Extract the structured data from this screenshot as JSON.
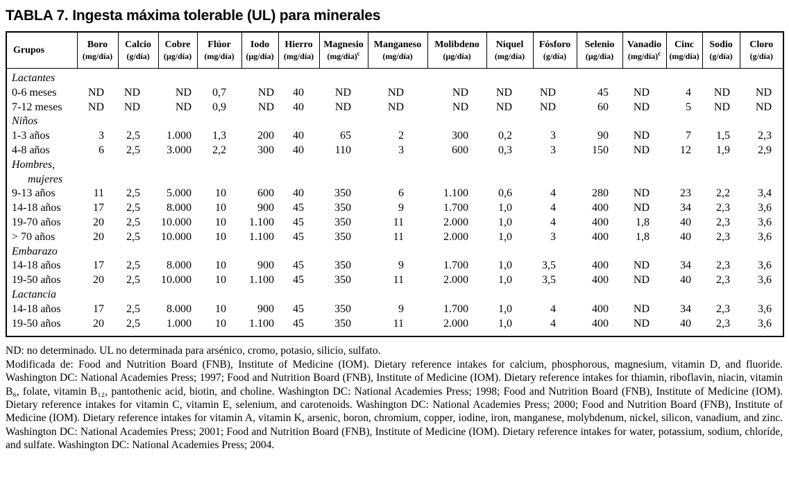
{
  "title": "TABLA 7. Ingesta máxima tolerable (UL) para minerales",
  "table": {
    "columns": [
      {
        "name": "Grupos",
        "unit": ""
      },
      {
        "name": "Boro",
        "unit": "(mg/día)"
      },
      {
        "name": "Calcio",
        "unit": "(g/día)"
      },
      {
        "name": "Cobre",
        "unit": "(µg/día)"
      },
      {
        "name": "Flúor",
        "unit": "(mg/día)"
      },
      {
        "name": "Iodo",
        "unit": "(µg/día)"
      },
      {
        "name": "Hierro",
        "unit": "(mg/día)"
      },
      {
        "name": "Magnesio",
        "unit": "(mg/día)",
        "unit_sup": "c"
      },
      {
        "name": "Manganeso",
        "unit": "(mg/día)"
      },
      {
        "name": "Molibdeno",
        "unit": "(µg/día)"
      },
      {
        "name": "Níquel",
        "unit": "(mg/día)"
      },
      {
        "name": "Fósforo",
        "unit": "(g/día)"
      },
      {
        "name": "Selenio",
        "unit": "(µg/día)"
      },
      {
        "name": "Vanadio",
        "unit": "(mg/día)",
        "unit_sup": "c"
      },
      {
        "name": "Cinc",
        "unit": "(mg/día)"
      },
      {
        "name": "Sodio",
        "unit": "(g/día)"
      },
      {
        "name": "Cloro",
        "unit": "(g/día)"
      }
    ],
    "rows": [
      {
        "type": "group",
        "label": "Lactantes"
      },
      {
        "type": "data",
        "label": "0-6 meses",
        "values": [
          "ND",
          "ND",
          "ND",
          "0,7",
          "ND",
          "40",
          "ND",
          "ND",
          "ND",
          "ND",
          "ND",
          "45",
          "ND",
          "4",
          "ND",
          "ND"
        ]
      },
      {
        "type": "data",
        "label": "7-12 meses",
        "values": [
          "ND",
          "ND",
          "ND",
          "0,9",
          "ND",
          "40",
          "ND",
          "ND",
          "ND",
          "ND",
          "ND",
          "60",
          "ND",
          "5",
          "ND",
          "ND"
        ]
      },
      {
        "type": "group",
        "label": "Niños"
      },
      {
        "type": "data",
        "label": "1-3 años",
        "values": [
          "3",
          "2,5",
          "1.000",
          "1,3",
          "200",
          "40",
          "65",
          "2",
          "300",
          "0,2",
          "3",
          "90",
          "ND",
          "7",
          "1,5",
          "2,3"
        ]
      },
      {
        "type": "data",
        "label": "4-8 años",
        "values": [
          "6",
          "2,5",
          "3.000",
          "2,2",
          "300",
          "40",
          "110",
          "3",
          "600",
          "0,3",
          "3",
          "150",
          "ND",
          "12",
          "1,9",
          "2,9"
        ]
      },
      {
        "type": "group",
        "label": "Hombres,"
      },
      {
        "type": "group-cont",
        "label": "mujeres"
      },
      {
        "type": "data",
        "label": "9-13 años",
        "values": [
          "11",
          "2,5",
          "5.000",
          "10",
          "600",
          "40",
          "350",
          "6",
          "1.100",
          "0,6",
          "4",
          "280",
          "ND",
          "23",
          "2,2",
          "3,4"
        ]
      },
      {
        "type": "data",
        "label": "14-18 años",
        "values": [
          "17",
          "2,5",
          "8.000",
          "10",
          "900",
          "45",
          "350",
          "9",
          "1.700",
          "1,0",
          "4",
          "400",
          "ND",
          "34",
          "2,3",
          "3,6"
        ]
      },
      {
        "type": "data",
        "label": "19-70 años",
        "values": [
          "20",
          "2,5",
          "10.000",
          "10",
          "1.100",
          "45",
          "350",
          "11",
          "2.000",
          "1,0",
          "4",
          "400",
          "1,8",
          "40",
          "2,3",
          "3,6"
        ]
      },
      {
        "type": "data",
        "label": "> 70 años",
        "values": [
          "20",
          "2,5",
          "10.000",
          "10",
          "1.100",
          "45",
          "350",
          "11",
          "2.000",
          "1,0",
          "3",
          "400",
          "1,8",
          "40",
          "2,3",
          "3,6"
        ]
      },
      {
        "type": "group",
        "label": "Embarazo"
      },
      {
        "type": "data",
        "label": "14-18 años",
        "values": [
          "17",
          "2,5",
          "8.000",
          "10",
          "900",
          "45",
          "350",
          "9",
          "1.700",
          "1,0",
          "3,5",
          "400",
          "ND",
          "34",
          "2,3",
          "3,6"
        ]
      },
      {
        "type": "data",
        "label": "19-50 años",
        "values": [
          "20",
          "2,5",
          "10.000",
          "10",
          "1.100",
          "45",
          "350",
          "11",
          "2.000",
          "1,0",
          "3,5",
          "400",
          "ND",
          "40",
          "2,3",
          "3,6"
        ]
      },
      {
        "type": "group",
        "label": "Lactancia"
      },
      {
        "type": "data",
        "label": "14-18 años",
        "values": [
          "17",
          "2,5",
          "8.000",
          "10",
          "900",
          "45",
          "350",
          "9",
          "1.700",
          "1,0",
          "4",
          "400",
          "ND",
          "34",
          "2,3",
          "3,6"
        ]
      },
      {
        "type": "data",
        "label": "19-50 años",
        "values": [
          "20",
          "2,5",
          "1.000",
          "10",
          "1.100",
          "45",
          "350",
          "11",
          "2.000",
          "1,0",
          "4",
          "400",
          "ND",
          "40",
          "2,3",
          "3,6"
        ]
      }
    ]
  },
  "footnotes": {
    "nd_note": "ND: no determinado. UL no determinada para arsénico, cromo, potasio, silicio, sulfato.",
    "source_note": "Modificada de: Food and Nutrition Board (FNB), Institute of Medicine (IOM). Dietary reference intakes for calcium, phosphorous, magnesium, vitamin D, and fluoride. Washington DC: National Academies Press; 1997; Food and Nutrition Board (FNB), Institute of Medicine (IOM). Dietary reference intakes for thiamin, riboflavin, niacin, vitamin B₆, folate, vitamin B₁₂, pantothenic acid, biotin, and choline. Washington DC: National Academies Press; 1998; Food and Nutrition Board (FNB), Institute of Medicine (IOM). Dietary reference intakes for vitamin C, vitamin E, selenium, and carotenoids. Washington DC: National Academies Press; 2000; Food and Nutrition Board (FNB), Institute of Medicine (IOM). Dietary reference intakes for vitamin A, vitamin K, arsenic, boron, chromium, copper, iodine, iron, manganese, molybdenum, nickel, silicon, vanadium, and zinc. Washington DC: National Academies Press; 2001; Food and Nutrition Board (FNB), Institute of Medicine (IOM). Dietary reference intakes for water, potassium, sodium, chloríde, and sulfate. Washington DC: National Academies Press; 2004."
  }
}
